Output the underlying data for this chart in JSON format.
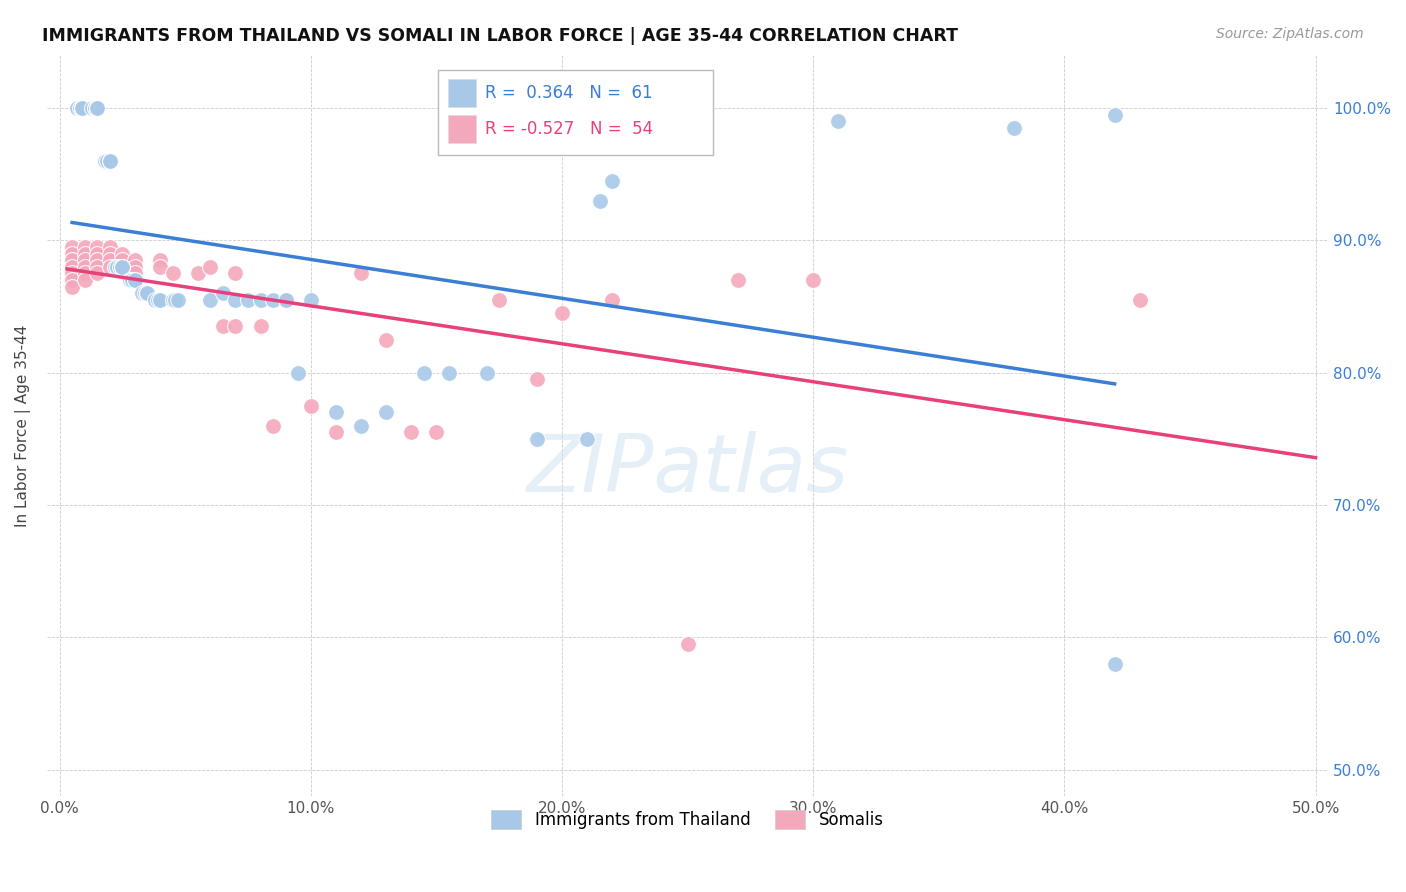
{
  "title": "IMMIGRANTS FROM THAILAND VS SOMALI IN LABOR FORCE | AGE 35-44 CORRELATION CHART",
  "source": "Source: ZipAtlas.com",
  "ylabel": "In Labor Force | Age 35-44",
  "xlim": [
    -0.005,
    0.505
  ],
  "ylim": [
    0.48,
    1.04
  ],
  "ytick_labels": [
    "50.0%",
    "60.0%",
    "70.0%",
    "80.0%",
    "90.0%",
    "100.0%"
  ],
  "ytick_values": [
    0.5,
    0.6,
    0.7,
    0.8,
    0.9,
    1.0
  ],
  "xtick_labels": [
    "0.0%",
    "10.0%",
    "20.0%",
    "30.0%",
    "40.0%",
    "50.0%"
  ],
  "xtick_values": [
    0.0,
    0.1,
    0.2,
    0.3,
    0.4,
    0.5
  ],
  "legend_labels": [
    "Immigrants from Thailand",
    "Somalis"
  ],
  "R_thailand": 0.364,
  "N_thailand": 61,
  "R_somali": -0.527,
  "N_somali": 54,
  "color_thailand": "#a8c8e8",
  "color_somali": "#f4a8bc",
  "trendline_color_thailand": "#3a7fd5",
  "trendline_color_somali": "#e8407a",
  "watermark": "ZIPatlas",
  "background_color": "#ffffff",
  "grid_color": "#cccccc",
  "thailand_x": [
    0.007,
    0.008,
    0.009,
    0.009,
    0.009,
    0.009,
    0.009,
    0.013,
    0.014,
    0.014,
    0.015,
    0.015,
    0.015,
    0.018,
    0.019,
    0.02,
    0.02,
    0.02,
    0.022,
    0.023,
    0.024,
    0.025,
    0.025,
    0.025,
    0.028,
    0.029,
    0.03,
    0.03,
    0.033,
    0.034,
    0.035,
    0.035,
    0.038,
    0.039,
    0.04,
    0.045,
    0.046,
    0.047,
    0.06,
    0.065,
    0.07,
    0.075,
    0.08,
    0.085,
    0.09,
    0.095,
    0.1,
    0.11,
    0.12,
    0.13,
    0.145,
    0.155,
    0.17,
    0.19,
    0.21,
    0.215,
    0.22,
    0.31,
    0.38,
    0.42,
    0.42
  ],
  "thailand_y": [
    1.0,
    1.0,
    1.0,
    1.0,
    1.0,
    1.0,
    1.0,
    1.0,
    1.0,
    1.0,
    1.0,
    1.0,
    1.0,
    0.96,
    0.96,
    0.96,
    0.96,
    0.96,
    0.88,
    0.88,
    0.88,
    0.88,
    0.88,
    0.88,
    0.87,
    0.87,
    0.87,
    0.87,
    0.86,
    0.86,
    0.86,
    0.86,
    0.855,
    0.855,
    0.855,
    0.855,
    0.855,
    0.855,
    0.855,
    0.86,
    0.855,
    0.855,
    0.855,
    0.855,
    0.855,
    0.8,
    0.855,
    0.77,
    0.76,
    0.77,
    0.8,
    0.8,
    0.8,
    0.75,
    0.75,
    0.93,
    0.945,
    0.99,
    0.985,
    0.995,
    0.58
  ],
  "somali_x": [
    0.005,
    0.005,
    0.005,
    0.005,
    0.005,
    0.005,
    0.005,
    0.01,
    0.01,
    0.01,
    0.01,
    0.01,
    0.01,
    0.015,
    0.015,
    0.015,
    0.015,
    0.015,
    0.02,
    0.02,
    0.02,
    0.02,
    0.02,
    0.025,
    0.025,
    0.025,
    0.03,
    0.03,
    0.03,
    0.04,
    0.04,
    0.045,
    0.055,
    0.06,
    0.065,
    0.07,
    0.07,
    0.08,
    0.085,
    0.09,
    0.1,
    0.11,
    0.12,
    0.13,
    0.14,
    0.15,
    0.175,
    0.19,
    0.2,
    0.22,
    0.25,
    0.27,
    0.3,
    0.43
  ],
  "somali_y": [
    0.895,
    0.89,
    0.885,
    0.88,
    0.875,
    0.87,
    0.865,
    0.895,
    0.89,
    0.885,
    0.88,
    0.875,
    0.87,
    0.895,
    0.89,
    0.885,
    0.88,
    0.875,
    0.895,
    0.89,
    0.885,
    0.88,
    0.96,
    0.89,
    0.885,
    0.88,
    0.885,
    0.88,
    0.875,
    0.885,
    0.88,
    0.875,
    0.875,
    0.88,
    0.835,
    0.875,
    0.835,
    0.835,
    0.76,
    0.855,
    0.775,
    0.755,
    0.875,
    0.825,
    0.755,
    0.755,
    0.855,
    0.795,
    0.845,
    0.855,
    0.595,
    0.87,
    0.87,
    0.855
  ]
}
